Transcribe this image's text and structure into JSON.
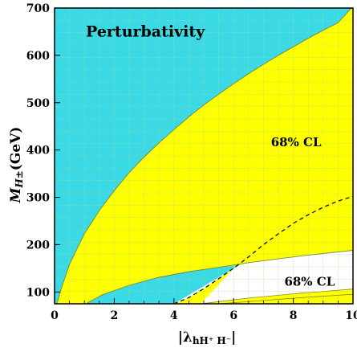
{
  "chart_data": {
    "type": "area",
    "xlabel": "|λ",
    "xlabel_sub": "hH⁺ H⁻",
    "xlabel_close": "|",
    "ylabel": "M",
    "ylabel_sub": "H±",
    "ylabel_unit": "(GeV)",
    "xlim": [
      0,
      10
    ],
    "ylim": [
      75,
      700
    ],
    "x_ticks": [
      0,
      2,
      4,
      6,
      8,
      10
    ],
    "y_ticks": [
      100,
      200,
      300,
      400,
      500,
      600,
      700
    ],
    "colors": {
      "cyan": "#3ad9e6",
      "yellow": "#ffff00",
      "grid": "#9ee08e",
      "dashed": "#000000"
    },
    "annotations": [
      {
        "text": "Perturbativity",
        "x": 1.05,
        "y": 640,
        "size": 19
      },
      {
        "text": "68% CL",
        "x": 7.25,
        "y": 408,
        "size": 15
      },
      {
        "text": "68% CL",
        "x": 7.7,
        "y": 113,
        "size": 15
      }
    ],
    "regions": {
      "perturbativity_boundary": [
        [
          0.08,
          75
        ],
        [
          0.25,
          112
        ],
        [
          0.5,
          158
        ],
        [
          1.0,
          223
        ],
        [
          1.5,
          272
        ],
        [
          2.0,
          314
        ],
        [
          2.5,
          352
        ],
        [
          3.0,
          385
        ],
        [
          3.5,
          415
        ],
        [
          4.0,
          443
        ],
        [
          4.5,
          470
        ],
        [
          5.0,
          495
        ],
        [
          5.5,
          518
        ],
        [
          6.0,
          540
        ],
        [
          6.5,
          561
        ],
        [
          7.0,
          581
        ],
        [
          7.5,
          600
        ],
        [
          8.0,
          618
        ],
        [
          8.5,
          636
        ],
        [
          9.0,
          653
        ],
        [
          9.5,
          669
        ],
        [
          9.95,
          700
        ]
      ],
      "lower_band_top": [
        [
          1.05,
          75
        ],
        [
          1.6,
          94
        ],
        [
          2.5,
          114
        ],
        [
          3.5,
          131
        ],
        [
          4.5,
          143
        ],
        [
          5.5,
          152
        ],
        [
          6.5,
          162
        ],
        [
          7.5,
          170
        ],
        [
          8.5,
          178
        ],
        [
          10,
          188
        ]
      ],
      "dashed_line": [
        [
          4.0,
          75
        ],
        [
          4.5,
          88
        ],
        [
          5.0,
          107
        ],
        [
          5.5,
          128
        ],
        [
          6.0,
          150
        ],
        [
          6.5,
          174
        ],
        [
          7.0,
          200
        ],
        [
          7.5,
          223
        ],
        [
          8.0,
          245
        ],
        [
          8.5,
          263
        ],
        [
          9.0,
          279
        ],
        [
          9.5,
          292
        ],
        [
          10,
          302
        ]
      ],
      "small_band_upper": [
        [
          4.9,
          75
        ],
        [
          6.5,
          87
        ],
        [
          8.0,
          96
        ],
        [
          10,
          106
        ]
      ],
      "small_band_lower": [
        [
          5.5,
          75
        ],
        [
          7.0,
          82
        ],
        [
          8.5,
          89
        ],
        [
          10,
          95
        ]
      ]
    }
  }
}
